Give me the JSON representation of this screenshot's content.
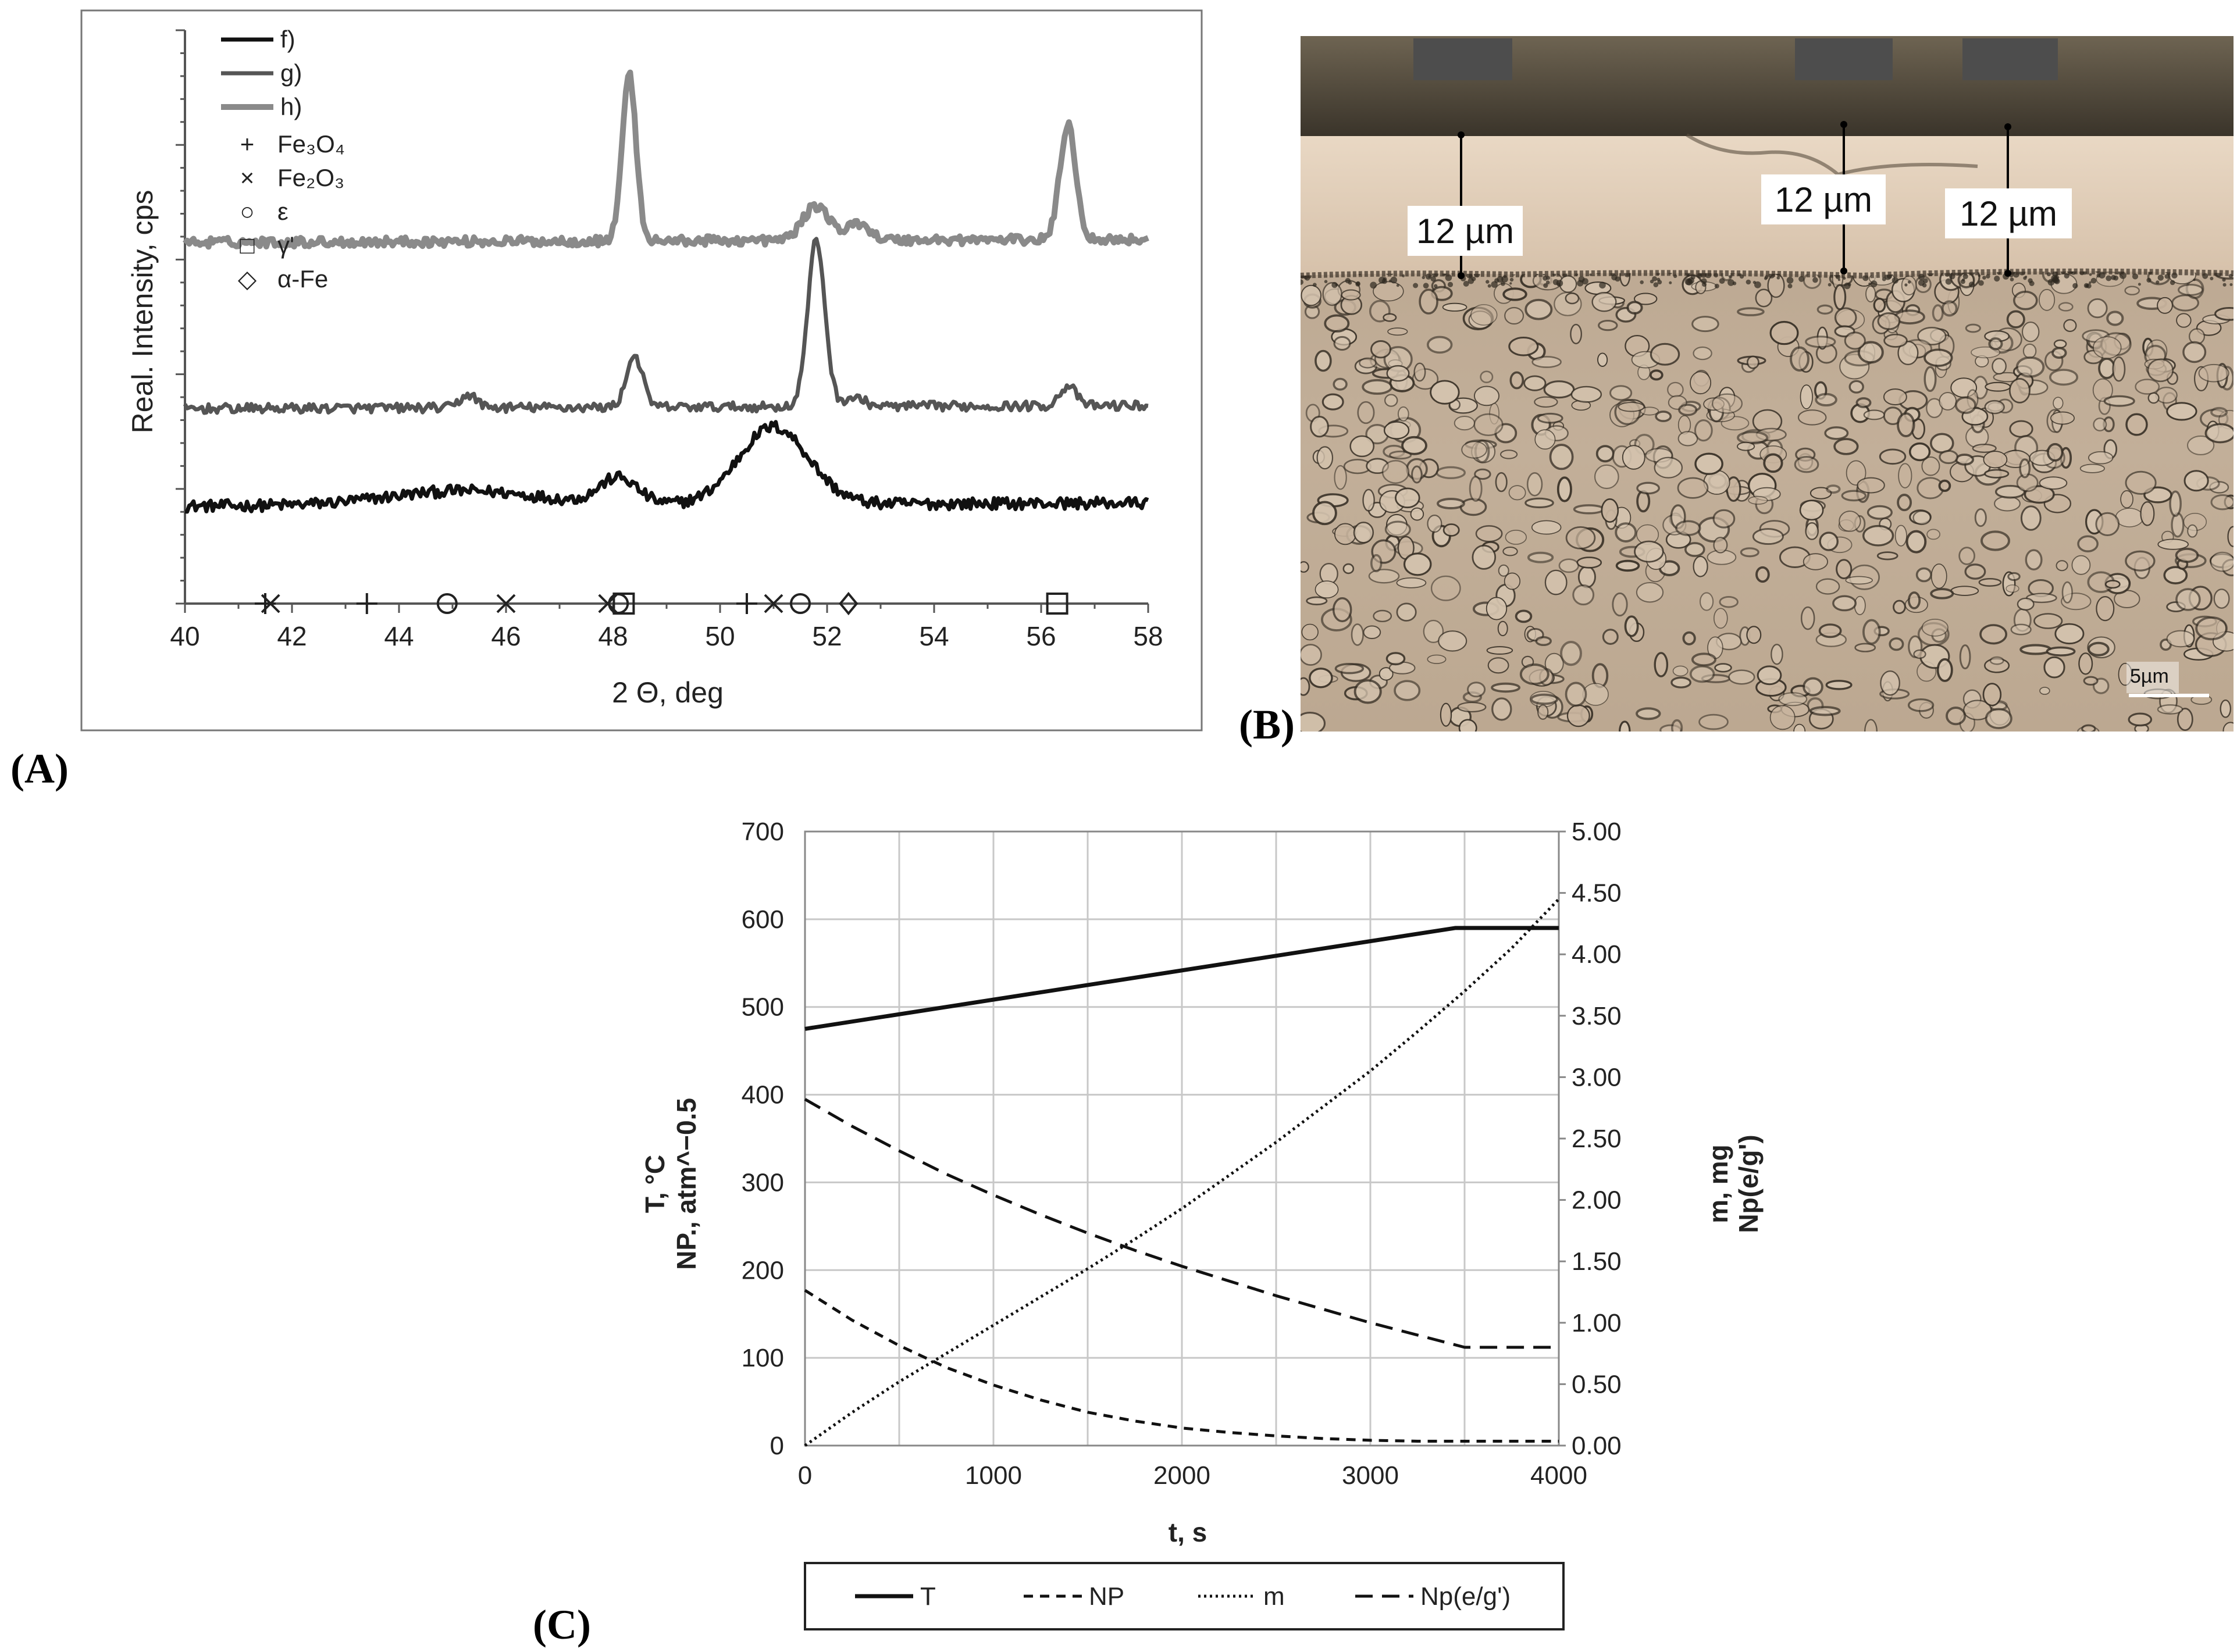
{
  "panels": {
    "A": {
      "label": "(A)"
    },
    "B": {
      "label": "(B)"
    },
    "C": {
      "label": "(C)"
    }
  },
  "micrograph": {
    "thickness_labels": [
      "12 µm",
      "12 µm",
      "12 µm"
    ],
    "scale_bar_label": "5µm",
    "colors": {
      "background_top": "#4a4438",
      "layer": "#ddc9b3",
      "substrate": "#b9a590",
      "grain": "#3a3228"
    }
  },
  "chart_data": [
    {
      "id": "xrd",
      "type": "line",
      "title": "",
      "xlabel": "2 Θ, deg",
      "ylabel": "Real. Intensity, cps",
      "xlim": [
        40,
        58
      ],
      "xticks": [
        "40",
        "42",
        "44",
        "46",
        "48",
        "50",
        "52",
        "54",
        "56",
        "58"
      ],
      "ylim": [
        0,
        100
      ],
      "series": [
        {
          "name": "f)",
          "color": "#111111",
          "baseline": 17,
          "noise": 1.0,
          "peaks": [
            [
              45.2,
              2.5,
              1.4
            ],
            [
              48.1,
              4.5,
              0.35
            ],
            [
              51.0,
              13.5,
              0.65
            ]
          ]
        },
        {
          "name": "g)",
          "color": "#555555",
          "baseline": 34,
          "noise": 0.8,
          "peaks": [
            [
              45.3,
              2.3,
              0.15
            ],
            [
              48.4,
              9.0,
              0.15
            ],
            [
              51.8,
              29.0,
              0.16
            ],
            [
              52.5,
              1.5,
              0.2
            ],
            [
              56.5,
              3.5,
              0.15
            ]
          ]
        },
        {
          "name": "h)",
          "color": "#8a8a8a",
          "baseline": 63,
          "noise": 0.8,
          "peaks": [
            [
              48.3,
              29.0,
              0.13
            ],
            [
              51.8,
              6.0,
              0.25
            ],
            [
              52.6,
              3.0,
              0.2
            ],
            [
              56.5,
              20.0,
              0.15
            ]
          ]
        }
      ],
      "phase_markers": [
        {
          "symbol": "+",
          "name": "Fe₃O₄",
          "positions": [
            41.5,
            43.4,
            50.5
          ]
        },
        {
          "symbol": "×",
          "name": "Fe₂O₃",
          "positions": [
            41.6,
            46.0,
            47.9,
            51.0
          ]
        },
        {
          "symbol": "○",
          "name": "ε",
          "positions": [
            44.9,
            48.1,
            51.5
          ]
        },
        {
          "symbol": "□",
          "name": "γ'",
          "positions": [
            48.2,
            56.3
          ]
        },
        {
          "symbol": "◇",
          "name": "α-Fe",
          "positions": [
            52.4
          ]
        }
      ]
    },
    {
      "id": "process",
      "type": "line",
      "xlabel": "t, s",
      "ylabel_left": [
        "T, °C",
        "NP., atm^−0.5"
      ],
      "ylabel_right": [
        "m, mg",
        "Np(e/g')"
      ],
      "xlim": [
        0,
        4000
      ],
      "xticks": [
        "0",
        "1000",
        "2000",
        "3000",
        "4000"
      ],
      "ylim_left": [
        0,
        700
      ],
      "yticks_left": [
        "0",
        "100",
        "200",
        "300",
        "400",
        "500",
        "600",
        "700"
      ],
      "ylim_right": [
        0,
        5
      ],
      "yticks_right": [
        "0.00",
        "0.50",
        "1.00",
        "1.50",
        "2.00",
        "2.50",
        "3.00",
        "3.50",
        "4.00",
        "4.50",
        "5.00"
      ],
      "series": [
        {
          "name": "T",
          "axis": "left",
          "style": "solid",
          "x": [
            0,
            3450,
            4000
          ],
          "y": [
            475,
            590,
            590
          ]
        },
        {
          "name": "NP",
          "axis": "left",
          "style": "dashed",
          "x": [
            0,
            250,
            500,
            750,
            1000,
            1250,
            1500,
            1750,
            2000,
            2250,
            2500,
            2750,
            3000,
            3250,
            3500,
            3750,
            4000
          ],
          "y": [
            177,
            143,
            114,
            89,
            69,
            52,
            38,
            28,
            20,
            15,
            11,
            8,
            6,
            5,
            5,
            5,
            5
          ]
        },
        {
          "name": "m",
          "axis": "right",
          "style": "dotted",
          "x": [
            0,
            250,
            500,
            750,
            1000,
            1250,
            1500,
            1750,
            2000,
            2250,
            2500,
            2750,
            3000,
            3250,
            3500,
            3750,
            4000
          ],
          "y": [
            0.0,
            0.27,
            0.52,
            0.75,
            0.98,
            1.21,
            1.44,
            1.68,
            1.93,
            2.2,
            2.47,
            2.76,
            3.05,
            3.37,
            3.7,
            4.05,
            4.45
          ]
        },
        {
          "name": "Np(e/g')",
          "axis": "right",
          "style": "longdash",
          "x": [
            0,
            250,
            500,
            750,
            1000,
            1250,
            1500,
            1750,
            2000,
            2250,
            2500,
            2750,
            3000,
            3250,
            3500,
            3750,
            4000
          ],
          "y": [
            2.82,
            2.6,
            2.4,
            2.21,
            2.04,
            1.88,
            1.73,
            1.59,
            1.46,
            1.34,
            1.22,
            1.11,
            1.0,
            0.9,
            0.8,
            0.8,
            0.8
          ]
        }
      ],
      "legend": [
        "T",
        "NP",
        "m",
        "Np(e/g')"
      ]
    }
  ]
}
